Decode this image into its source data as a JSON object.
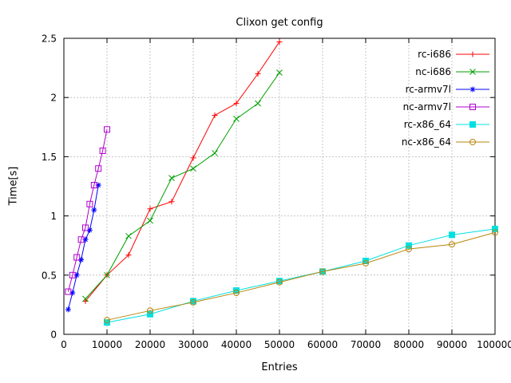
{
  "page": {
    "background": "#ffffff",
    "text_color": "#000000",
    "grid_color": "#c4c4c4",
    "border_color": "#000000"
  },
  "chart_data": {
    "type": "line",
    "title": "Clixon get config",
    "xlabel": "Entries",
    "ylabel": "Time[s]",
    "xlim": [
      0,
      100000
    ],
    "ylim": [
      0,
      2.5
    ],
    "xticks": [
      0,
      10000,
      20000,
      30000,
      40000,
      50000,
      60000,
      70000,
      80000,
      90000,
      100000
    ],
    "yticks": [
      0,
      0.5,
      1,
      1.5,
      2,
      2.5
    ],
    "grid": true,
    "legend_position": "top-right-inside",
    "series": [
      {
        "name": "rc-i686",
        "color": "#ff0000",
        "marker": "plus",
        "x": [
          5000,
          10000,
          15000,
          20000,
          25000,
          30000,
          35000,
          40000,
          45000,
          50000
        ],
        "y": [
          0.28,
          0.5,
          0.67,
          1.06,
          1.12,
          1.49,
          1.85,
          1.95,
          2.2,
          2.47
        ]
      },
      {
        "name": "nc-i686",
        "color": "#00a000",
        "marker": "cross",
        "x": [
          5000,
          10000,
          15000,
          20000,
          25000,
          30000,
          35000,
          40000,
          45000,
          50000
        ],
        "y": [
          0.3,
          0.5,
          0.83,
          0.96,
          1.32,
          1.4,
          1.53,
          1.82,
          1.95,
          2.21
        ]
      },
      {
        "name": "rc-armv7l",
        "color": "#0000ff",
        "marker": "asterisk",
        "x": [
          1000,
          2000,
          3000,
          4000,
          5000,
          6000,
          7000,
          8000
        ],
        "y": [
          0.21,
          0.35,
          0.5,
          0.63,
          0.8,
          0.88,
          1.05,
          1.26
        ]
      },
      {
        "name": "nc-armv7l",
        "color": "#b000d0",
        "marker": "square-open",
        "x": [
          1000,
          2000,
          3000,
          4000,
          5000,
          6000,
          7000,
          8000,
          9000,
          10000
        ],
        "y": [
          0.36,
          0.5,
          0.65,
          0.8,
          0.9,
          1.1,
          1.26,
          1.4,
          1.55,
          1.73
        ]
      },
      {
        "name": "rc-x86_64",
        "color": "#00e0e0",
        "marker": "square-filled",
        "x": [
          10000,
          20000,
          30000,
          40000,
          50000,
          60000,
          70000,
          80000,
          90000,
          100000
        ],
        "y": [
          0.1,
          0.17,
          0.28,
          0.37,
          0.45,
          0.53,
          0.62,
          0.75,
          0.84,
          0.89
        ]
      },
      {
        "name": "nc-x86_64",
        "color": "#b8860b",
        "marker": "circle-open",
        "x": [
          10000,
          20000,
          30000,
          40000,
          50000,
          60000,
          70000,
          80000,
          90000,
          100000
        ],
        "y": [
          0.12,
          0.2,
          0.27,
          0.35,
          0.44,
          0.53,
          0.6,
          0.72,
          0.76,
          0.86
        ]
      }
    ]
  }
}
